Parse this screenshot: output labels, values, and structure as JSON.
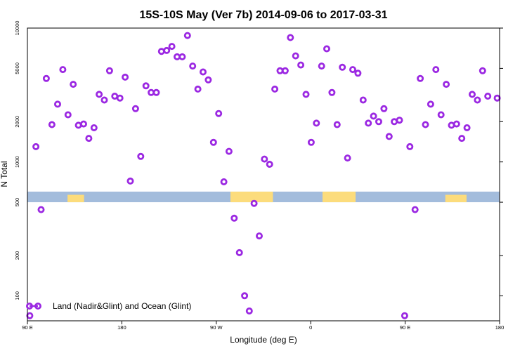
{
  "chart_data": {
    "type": "scatter",
    "title": "15S-10S May (Ver 7b)   2014-09-06 to 2017-03-31",
    "xlabel": "Longitude (deg E)",
    "ylabel": "N Total",
    "y_scale": "log",
    "ylim": [
      65,
      10000
    ],
    "xlim": [
      0,
      1
    ],
    "x_ticks": [
      {
        "value": 0.0,
        "label": "90 E"
      },
      {
        "value": 0.2,
        "label": "180"
      },
      {
        "value": 0.4,
        "label": "90 W"
      },
      {
        "value": 0.6,
        "label": "0"
      },
      {
        "value": 0.8,
        "label": "90 E"
      },
      {
        "value": 1.0,
        "label": "180"
      }
    ],
    "y_ticks": [
      100,
      200,
      500,
      1000,
      2000,
      5000,
      10000
    ],
    "legend": {
      "position": "bottom-left",
      "entry": "Land (Nadir&Glint) and Ocean (Glint)"
    },
    "colors": {
      "points": "#9b28e2",
      "ocean": "#a3bcdc",
      "land": "#fcdc7c"
    },
    "band": {
      "y_range": [
        500,
        600
      ],
      "land_segments": [
        [
          0.085,
          0.12
        ],
        [
          0.43,
          0.52
        ],
        [
          0.625,
          0.695
        ],
        [
          0.885,
          0.93
        ]
      ]
    },
    "series": [
      {
        "name": "Land (Nadir&Glint) and Ocean (Glint)",
        "points": [
          [
            0.005,
            71
          ],
          [
            0.018,
            1300
          ],
          [
            0.029,
            440
          ],
          [
            0.04,
            4200
          ],
          [
            0.052,
            1900
          ],
          [
            0.064,
            2700
          ],
          [
            0.075,
            4900
          ],
          [
            0.086,
            2250
          ],
          [
            0.097,
            3800
          ],
          [
            0.108,
            1880
          ],
          [
            0.119,
            1920
          ],
          [
            0.13,
            1500
          ],
          [
            0.141,
            1800
          ],
          [
            0.152,
            3200
          ],
          [
            0.163,
            2900
          ],
          [
            0.174,
            4800
          ],
          [
            0.185,
            3100
          ],
          [
            0.196,
            3000
          ],
          [
            0.207,
            4300
          ],
          [
            0.218,
            720
          ],
          [
            0.229,
            2500
          ],
          [
            0.24,
            1100
          ],
          [
            0.251,
            3700
          ],
          [
            0.262,
            3300
          ],
          [
            0.273,
            3300
          ],
          [
            0.284,
            6700
          ],
          [
            0.295,
            6800
          ],
          [
            0.306,
            7300
          ],
          [
            0.317,
            6100
          ],
          [
            0.328,
            6100
          ],
          [
            0.339,
            8800
          ],
          [
            0.35,
            5200
          ],
          [
            0.361,
            3500
          ],
          [
            0.372,
            4700
          ],
          [
            0.383,
            4100
          ],
          [
            0.394,
            1400
          ],
          [
            0.405,
            2300
          ],
          [
            0.416,
            710
          ],
          [
            0.427,
            1200
          ],
          [
            0.438,
            380
          ],
          [
            0.449,
            210
          ],
          [
            0.46,
            100
          ],
          [
            0.47,
            77
          ],
          [
            0.48,
            490
          ],
          [
            0.491,
            280
          ],
          [
            0.502,
            1050
          ],
          [
            0.513,
            960
          ],
          [
            0.524,
            3500
          ],
          [
            0.535,
            4800
          ],
          [
            0.546,
            4800
          ],
          [
            0.557,
            8500
          ],
          [
            0.568,
            6200
          ],
          [
            0.579,
            5300
          ],
          [
            0.59,
            3200
          ],
          [
            0.601,
            1400
          ],
          [
            0.612,
            1950
          ],
          [
            0.623,
            5200
          ],
          [
            0.634,
            7000
          ],
          [
            0.645,
            3300
          ],
          [
            0.656,
            1900
          ],
          [
            0.667,
            5100
          ],
          [
            0.678,
            1070
          ],
          [
            0.689,
            4900
          ],
          [
            0.7,
            4600
          ],
          [
            0.711,
            2900
          ],
          [
            0.722,
            1950
          ],
          [
            0.733,
            2200
          ],
          [
            0.744,
            2000
          ],
          [
            0.755,
            2500
          ],
          [
            0.766,
            1550
          ],
          [
            0.777,
            2000
          ],
          [
            0.788,
            2050
          ],
          [
            0.799,
            71
          ],
          [
            0.81,
            1300
          ],
          [
            0.821,
            440
          ],
          [
            0.832,
            4200
          ],
          [
            0.843,
            1900
          ],
          [
            0.854,
            2700
          ],
          [
            0.865,
            4900
          ],
          [
            0.876,
            2250
          ],
          [
            0.887,
            3800
          ],
          [
            0.898,
            1880
          ],
          [
            0.909,
            1920
          ],
          [
            0.92,
            1500
          ],
          [
            0.931,
            1800
          ],
          [
            0.942,
            3200
          ],
          [
            0.953,
            2900
          ],
          [
            0.964,
            4800
          ],
          [
            0.975,
            3100
          ],
          [
            0.995,
            3000
          ]
        ]
      }
    ]
  }
}
